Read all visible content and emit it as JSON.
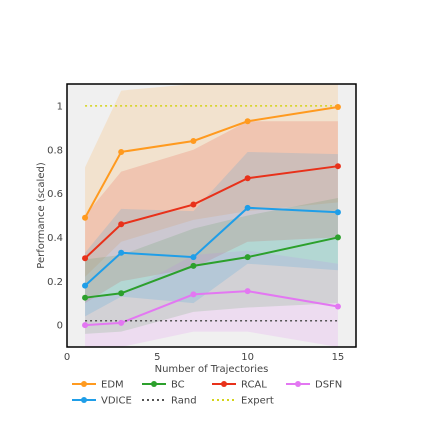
{
  "chart_data": {
    "type": "line",
    "xlabel": "Number of Trajectories",
    "ylabel": "Performance (scaled)",
    "xlim": [
      0,
      16
    ],
    "ylim": [
      -0.1,
      1.1
    ],
    "x_ticks": [
      {
        "value": 0,
        "label": "0"
      },
      {
        "value": 5,
        "label": "5"
      },
      {
        "value": 10,
        "label": "10"
      },
      {
        "value": 15,
        "label": "15"
      }
    ],
    "y_ticks": [
      {
        "value": 0,
        "label": "0"
      },
      {
        "value": 0.2,
        "label": "0.2"
      },
      {
        "value": 0.4,
        "label": "0.4"
      },
      {
        "value": 0.6,
        "label": "0.6"
      },
      {
        "value": 0.8,
        "label": "0.8"
      },
      {
        "value": 1,
        "label": "1"
      }
    ],
    "grid": false,
    "plot_background": "#f0f0f0",
    "legend_position": "bottom",
    "series": [
      {
        "name": "EDM",
        "color": "#ff9a1f",
        "dash": "solid",
        "markers": true,
        "x": [
          1,
          3,
          7,
          10,
          15
        ],
        "y": [
          0.49,
          0.79,
          0.84,
          0.93,
          0.995
        ],
        "lower": [
          0.22,
          0.38,
          0.48,
          0.52,
          0.56
        ],
        "upper": [
          0.72,
          1.07,
          1.1,
          1.1,
          1.1
        ]
      },
      {
        "name": "BC",
        "color": "#2ca02c",
        "dash": "solid",
        "markers": true,
        "x": [
          1,
          3,
          7,
          10,
          15
        ],
        "y": [
          0.125,
          0.145,
          0.27,
          0.31,
          0.4
        ],
        "lower": [
          -0.04,
          -0.03,
          0.06,
          0.08,
          0.1
        ],
        "upper": [
          0.3,
          0.32,
          0.44,
          0.5,
          0.58
        ]
      },
      {
        "name": "RCAL",
        "color": "#e8311a",
        "dash": "solid",
        "markers": true,
        "x": [
          1,
          3,
          7,
          10,
          15
        ],
        "y": [
          0.305,
          0.46,
          0.55,
          0.67,
          0.725
        ],
        "lower": [
          0.1,
          0.2,
          0.26,
          0.38,
          0.4
        ],
        "upper": [
          0.5,
          0.7,
          0.8,
          0.93,
          0.93
        ]
      },
      {
        "name": "DSFN",
        "color": "#e377f2",
        "dash": "solid",
        "markers": true,
        "x": [
          1,
          3,
          7,
          10,
          15
        ],
        "y": [
          0.0,
          0.01,
          0.14,
          0.155,
          0.085
        ],
        "lower": [
          -0.1,
          -0.1,
          -0.03,
          -0.03,
          -0.1
        ],
        "upper": [
          0.12,
          0.14,
          0.32,
          0.34,
          0.28
        ]
      },
      {
        "name": "VDICE",
        "color": "#1f9ee8",
        "dash": "solid",
        "markers": true,
        "x": [
          1,
          3,
          7,
          10,
          15
        ],
        "y": [
          0.18,
          0.33,
          0.31,
          0.535,
          0.515
        ],
        "lower": [
          0.04,
          0.13,
          0.1,
          0.28,
          0.25
        ],
        "upper": [
          0.33,
          0.53,
          0.52,
          0.79,
          0.78
        ]
      },
      {
        "name": "Rand",
        "color": "#555555",
        "dash": "dot",
        "markers": false,
        "x": [
          1,
          15
        ],
        "y": [
          0.02,
          0.02
        ]
      },
      {
        "name": "Expert",
        "color": "#d4d41a",
        "dash": "dot",
        "markers": false,
        "x": [
          1,
          15
        ],
        "y": [
          1.0,
          1.0
        ]
      }
    ],
    "legend_rows": [
      [
        "EDM",
        "BC",
        "RCAL",
        "DSFN"
      ],
      [
        "VDICE",
        "Rand",
        "Expert"
      ]
    ]
  }
}
